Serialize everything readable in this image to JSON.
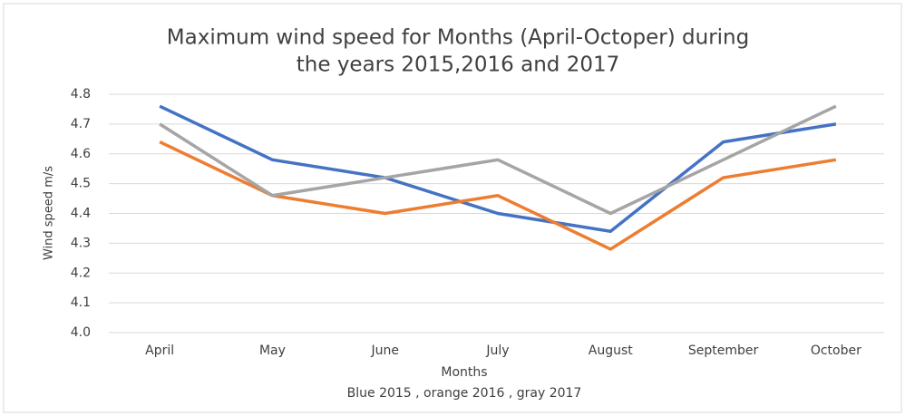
{
  "chart_data": {
    "type": "line",
    "title": [
      "Maximum wind speed for Months (April-Octoper) during",
      "the years 2015,2016 and 2017"
    ],
    "x_label": "Months",
    "y_label": "Wind speed m/s",
    "annotation": "Blue 2015 , orange 2016 ,  gray 2017",
    "categories": [
      "April",
      "May",
      "June",
      "July",
      "August",
      "September",
      "October"
    ],
    "series": [
      {
        "color": "#4472c4",
        "values": [
          4.76,
          4.58,
          4.52,
          4.4,
          4.34,
          4.64,
          4.7
        ]
      },
      {
        "color": "#ed7d31",
        "values": [
          4.64,
          4.46,
          4.4,
          4.46,
          4.28,
          4.52,
          4.58
        ]
      },
      {
        "color": "#a5a5a5",
        "values": [
          4.7,
          4.46,
          4.52,
          4.58,
          4.4,
          4.58,
          4.76
        ]
      }
    ],
    "ylim": [
      4.0,
      4.8
    ],
    "yticks": [
      {
        "value": 4,
        "label": "4.0"
      },
      4.1,
      4.2,
      4.3,
      4.4,
      4.5,
      4.6,
      4.7,
      4.8
    ],
    "grid": true
  }
}
